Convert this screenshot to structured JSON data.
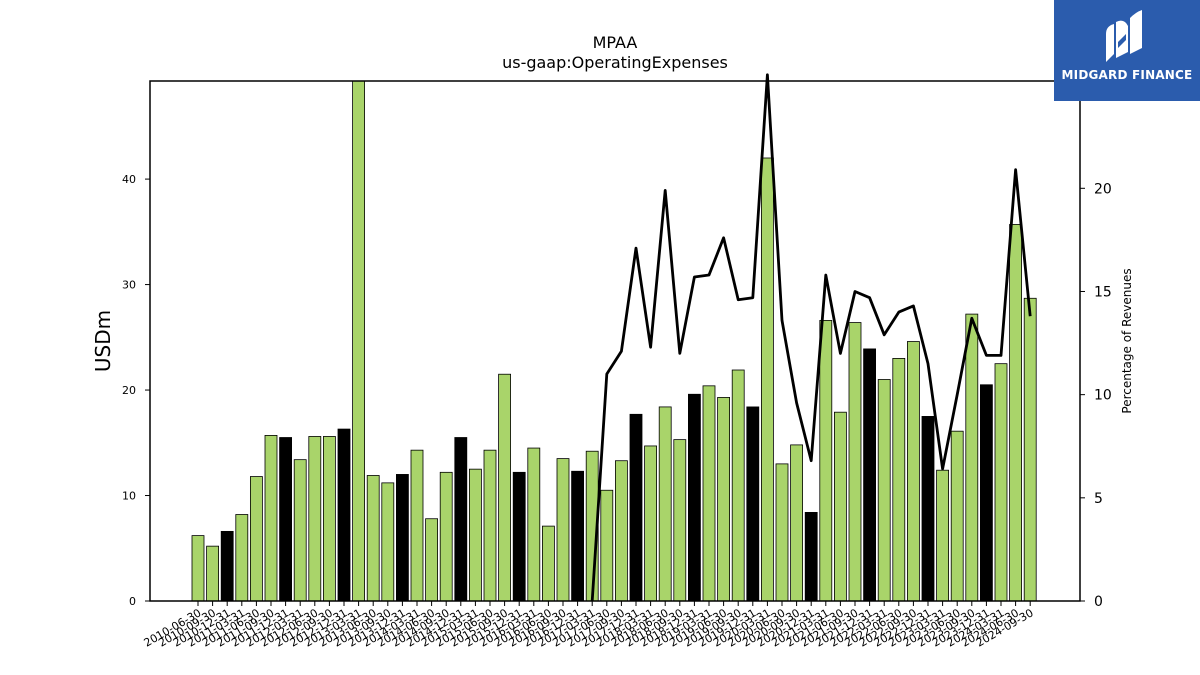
{
  "chart_data": {
    "type": "bar",
    "title": "MPAA",
    "subtitle": "us-gaap:OperatingExpenses",
    "ylabel": "USDm",
    "y2label": "Percentage of Revenues",
    "ylim": [
      0,
      49.3
    ],
    "y2lim": [
      0,
      25.2
    ],
    "yticks": [
      0,
      10,
      20,
      30,
      40
    ],
    "y2ticks": [
      0,
      5,
      10,
      15,
      20
    ],
    "categories": [
      "2010-06-30",
      "2010-09-30",
      "2010-12-31",
      "2011-03-31",
      "2011-06-30",
      "2011-09-30",
      "2011-12-31",
      "2012-03-31",
      "2012-06-30",
      "2012-09-30",
      "2012-12-31",
      "2013-03-31",
      "2013-06-30",
      "2013-09-30",
      "2013-12-31",
      "2014-03-31",
      "2014-06-30",
      "2014-09-30",
      "2014-12-31",
      "2015-03-31",
      "2015-06-30",
      "2015-09-30",
      "2015-12-31",
      "2016-03-31",
      "2016-06-30",
      "2016-09-30",
      "2016-12-31",
      "2017-03-31",
      "2017-06-30",
      "2017-09-30",
      "2017-12-31",
      "2018-03-31",
      "2018-06-30",
      "2018-09-30",
      "2018-12-31",
      "2019-03-31",
      "2019-06-30",
      "2019-09-30",
      "2019-12-31",
      "2020-03-31",
      "2020-06-30",
      "2020-09-30",
      "2020-12-31",
      "2021-03-31",
      "2021-06-30",
      "2021-09-30",
      "2021-12-31",
      "2022-03-31",
      "2022-06-30",
      "2022-09-30",
      "2022-12-31",
      "2023-03-31",
      "2023-06-30",
      "2023-09-30",
      "2023-12-31",
      "2024-03-31",
      "2024-06-30",
      "2024-09-30"
    ],
    "series": [
      {
        "type": "bar",
        "values": [
          6.2,
          5.2,
          6.6,
          8.2,
          11.8,
          15.7,
          15.5,
          13.4,
          15.6,
          15.6,
          16.3,
          49.3,
          11.9,
          11.2,
          12.0,
          14.3,
          7.8,
          12.2,
          15.5,
          12.5,
          14.3,
          21.5,
          12.2,
          14.5,
          7.1,
          13.5,
          12.3,
          14.2,
          10.5,
          13.3,
          17.7,
          14.7,
          18.4,
          15.3,
          19.6,
          20.4,
          19.3,
          21.9,
          18.4,
          42.0,
          13.0,
          14.8,
          8.4,
          26.6,
          17.9,
          26.4,
          23.9,
          21.0,
          23.0,
          24.6,
          17.5,
          12.4,
          16.1,
          27.2,
          20.5,
          22.5,
          35.7,
          28.7
        ],
        "highlight": [
          false,
          false,
          true,
          false,
          false,
          false,
          true,
          false,
          false,
          false,
          true,
          false,
          false,
          false,
          true,
          false,
          false,
          false,
          true,
          false,
          false,
          false,
          true,
          false,
          false,
          false,
          true,
          false,
          false,
          false,
          true,
          false,
          false,
          false,
          true,
          false,
          false,
          false,
          true,
          false,
          false,
          false,
          true,
          false,
          false,
          false,
          true,
          false,
          false,
          false,
          true,
          false,
          false,
          false,
          true,
          false,
          false,
          false
        ]
      },
      {
        "type": "line",
        "axis": "right",
        "values": [
          null,
          null,
          null,
          null,
          null,
          null,
          null,
          null,
          null,
          null,
          null,
          null,
          null,
          null,
          null,
          null,
          null,
          null,
          null,
          null,
          null,
          null,
          null,
          null,
          null,
          null,
          null,
          0.0,
          11.0,
          12.1,
          17.1,
          12.3,
          19.9,
          12.0,
          15.7,
          15.8,
          17.6,
          14.6,
          14.7,
          25.5,
          13.6,
          9.6,
          6.8,
          15.8,
          12.0,
          15.0,
          14.7,
          12.9,
          14.0,
          14.3,
          11.5,
          6.4,
          10.0,
          13.7,
          11.9,
          11.9,
          20.9,
          13.8
        ]
      }
    ],
    "colors": {
      "bar": "#a9d46a",
      "bar_highlight": "#000000",
      "line": "#000000"
    },
    "legend": "none",
    "grid": false
  },
  "logo": {
    "text": "MIDGARD FINANCE",
    "background": "#2b5cad"
  }
}
